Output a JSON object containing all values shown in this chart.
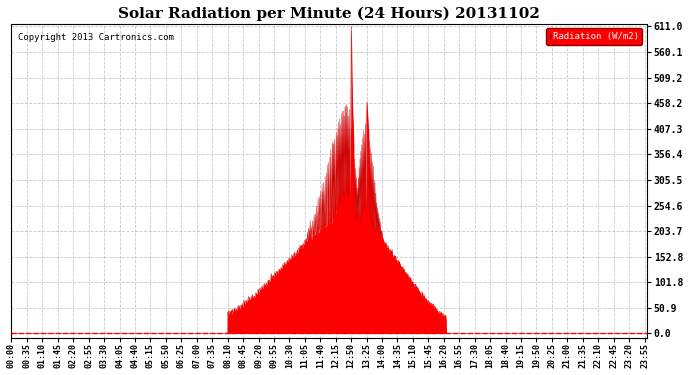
{
  "title": "Solar Radiation per Minute (24 Hours) 20131102",
  "copyright_text": "Copyright 2013 Cartronics.com",
  "legend_label": "Radiation (W/m2)",
  "background_color": "#ffffff",
  "plot_bg_color": "#ffffff",
  "fill_color": "#ff0000",
  "line_color": "#cc0000",
  "dashed_line_color": "#ff0000",
  "grid_color": "#bbbbbb",
  "yticks": [
    0.0,
    50.9,
    101.8,
    152.8,
    203.7,
    254.6,
    305.5,
    356.4,
    407.3,
    458.2,
    509.2,
    560.1,
    611.0
  ],
  "ymax": 611.0,
  "ymin": 0.0,
  "total_minutes": 1440,
  "sunrise_minute": 490,
  "sunset_minute": 985,
  "peak_minute": 770,
  "peak_value": 611.0,
  "xtick_step": 35
}
